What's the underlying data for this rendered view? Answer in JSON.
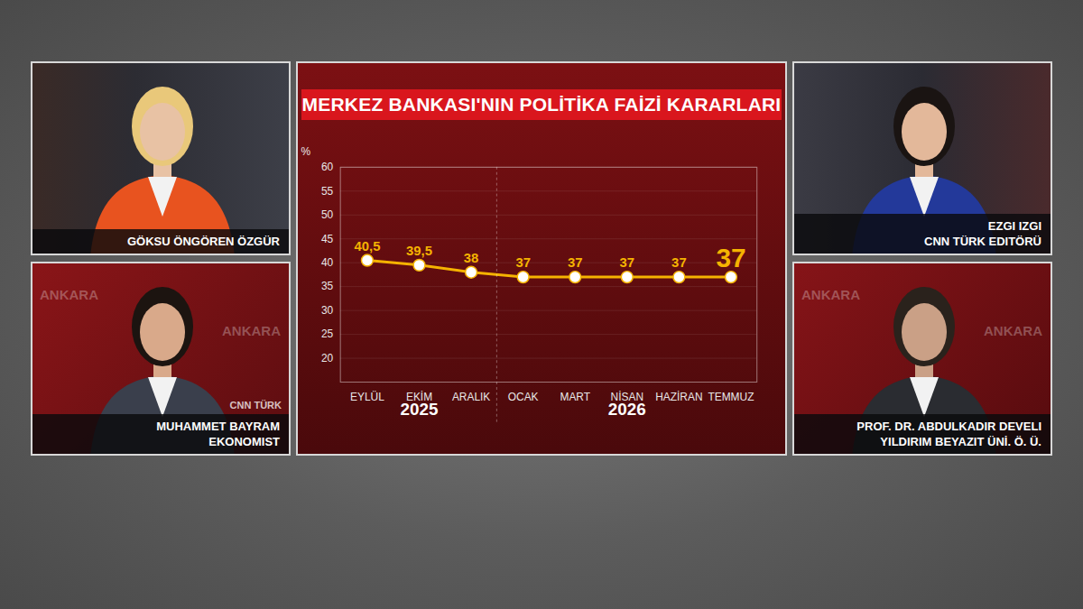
{
  "chart_data": {
    "type": "line",
    "title": "MERKEZ BANKASI'NIN POLİTİKA FAİZİ KARARLARI",
    "y_label": "%",
    "categories": [
      "EYLÜL",
      "EKİM",
      "ARALIK",
      "OCAK",
      "MART",
      "NİSAN",
      "HAZİRAN",
      "TEMMUZ"
    ],
    "values": [
      40.5,
      39.5,
      38,
      37,
      37,
      37,
      37,
      37
    ],
    "value_labels": [
      "40,5",
      "39,5",
      "38",
      "37",
      "37",
      "37",
      "37",
      "37"
    ],
    "x_groups": [
      {
        "label": "2025",
        "from": "EYLÜL",
        "to": "ARALIK"
      },
      {
        "label": "2026",
        "from": "OCAK",
        "to": "TEMMUZ"
      }
    ],
    "ylim": [
      15,
      60
    ],
    "yticks": [
      20,
      25,
      30,
      35,
      40,
      45,
      50,
      55,
      60
    ],
    "grid": true,
    "data_labels": true,
    "color": "#f5b301",
    "marker": "circle"
  },
  "panels": [
    {
      "lines": [
        "GÖKSU ÖNGÖREN ÖZGÜR"
      ]
    },
    {
      "lines": [
        "MUHAMMET BAYRAM",
        "EKONOMIST"
      ],
      "background_text": "ANKARA",
      "logo": "CNN TÜRK"
    },
    {
      "lines": [
        "EZGI IZGI",
        "CNN TÜRK EDITÖRÜ"
      ]
    },
    {
      "lines": [
        "PROF. DR. ABDULKADIR DEVELI",
        "YILDIRIM BEYAZIT ÜNİ. Ö. Ü."
      ],
      "background_text": "ANKARA"
    }
  ]
}
